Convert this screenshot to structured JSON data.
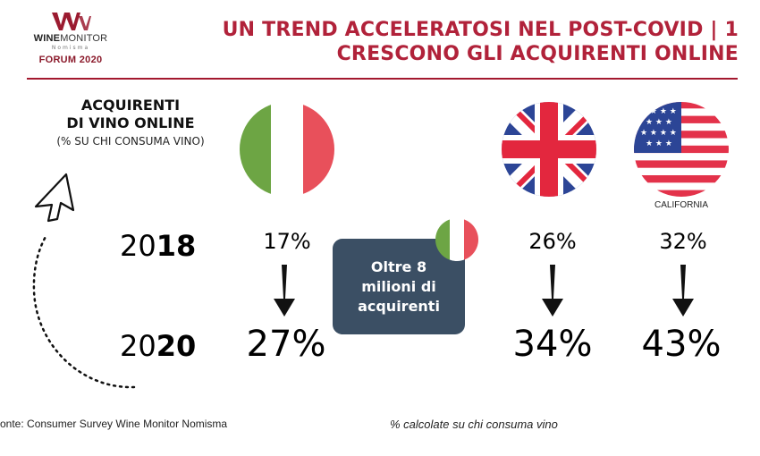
{
  "logo": {
    "brand_bold": "WINE",
    "brand_regular": "MONITOR",
    "sub": "Nomisma",
    "forum": "FORUM 2020"
  },
  "title": {
    "line1": "UN TREND ACCELERATOSI NEL POST-COVID | 1",
    "line2": "CRESCONO GLI ACQUIRENTI ONLINE"
  },
  "left_heading": {
    "line1": "ACQUIRENTI",
    "line2": "DI VINO ONLINE",
    "line3": "(% SU CHI CONSUMA VINO)"
  },
  "years": {
    "y2018_prefix": "20",
    "y2018_suffix": "18",
    "y2020_prefix": "20",
    "y2020_suffix": "20"
  },
  "countries": [
    {
      "flag": "italy-flag-icon",
      "value_2018": "17%",
      "value_2020": "27%"
    },
    {
      "flag": "uk-flag-icon",
      "value_2018": "26%",
      "value_2020": "34%"
    },
    {
      "flag": "usa-flag-icon",
      "caption": "CALIFORNIA",
      "value_2018": "32%",
      "value_2020": "43%"
    }
  ],
  "callout": {
    "line1": "Oltre 8",
    "line2": "milioni di",
    "line3": "acquirenti",
    "flag": "italy-flag-icon"
  },
  "footer": {
    "source": "onte: Consumer Survey Wine Monitor Nomisma",
    "note": "% calcolate su chi consuma vino"
  },
  "colors": {
    "title_red": "#b1223a",
    "callout_bg": "#3b4f64",
    "italy_green": "#6da544",
    "italy_red": "#e8505b",
    "uk_blue": "#2c4596",
    "uk_red": "#e3273e",
    "usa_red": "#e3324a",
    "usa_blue": "#2c4596"
  }
}
